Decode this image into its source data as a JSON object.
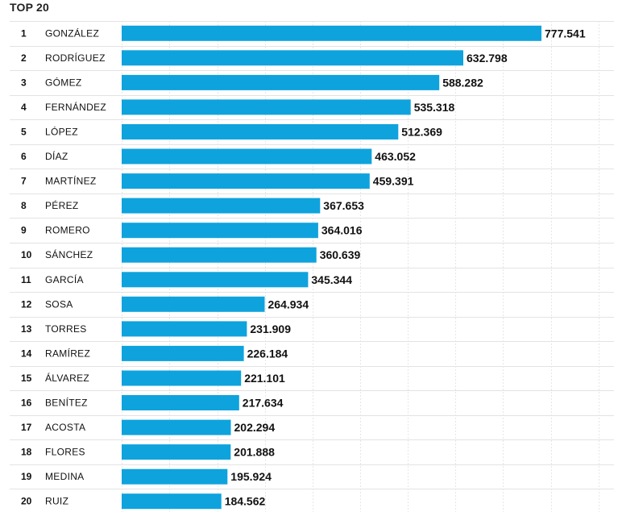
{
  "title": "TOP 20",
  "chart_data": {
    "type": "bar",
    "orientation": "horizontal",
    "title": "TOP 20",
    "bar_color": "#0ea3dd",
    "grid": true,
    "xlim": [
      0,
      820000
    ],
    "rows": [
      {
        "rank": "1",
        "name": "GONZÁLEZ",
        "value": 777541,
        "label": "777.541"
      },
      {
        "rank": "2",
        "name": "RODRÍGUEZ",
        "value": 632798,
        "label": "632.798"
      },
      {
        "rank": "3",
        "name": "GÓMEZ",
        "value": 588282,
        "label": "588.282"
      },
      {
        "rank": "4",
        "name": "FERNÁNDEZ",
        "value": 535318,
        "label": "535.318"
      },
      {
        "rank": "5",
        "name": "LÓPEZ",
        "value": 512369,
        "label": "512.369"
      },
      {
        "rank": "6",
        "name": "DÍAZ",
        "value": 463052,
        "label": "463.052"
      },
      {
        "rank": "7",
        "name": "MARTÍNEZ",
        "value": 459391,
        "label": "459.391"
      },
      {
        "rank": "8",
        "name": "PÉREZ",
        "value": 367653,
        "label": "367.653"
      },
      {
        "rank": "9",
        "name": "ROMERO",
        "value": 364016,
        "label": "364.016"
      },
      {
        "rank": "10",
        "name": "SÁNCHEZ",
        "value": 360639,
        "label": "360.639"
      },
      {
        "rank": "11",
        "name": "GARCÍA",
        "value": 345344,
        "label": "345.344"
      },
      {
        "rank": "12",
        "name": "SOSA",
        "value": 264934,
        "label": "264.934"
      },
      {
        "rank": "13",
        "name": "TORRES",
        "value": 231909,
        "label": "231.909"
      },
      {
        "rank": "14",
        "name": "RAMÍREZ",
        "value": 226184,
        "label": "226.184"
      },
      {
        "rank": "15",
        "name": "ÁLVAREZ",
        "value": 221101,
        "label": "221.101"
      },
      {
        "rank": "16",
        "name": "BENÍTEZ",
        "value": 217634,
        "label": "217.634"
      },
      {
        "rank": "17",
        "name": "ACOSTA",
        "value": 202294,
        "label": "202.294"
      },
      {
        "rank": "18",
        "name": "FLORES",
        "value": 201888,
        "label": "201.888"
      },
      {
        "rank": "19",
        "name": "MEDINA",
        "value": 195924,
        "label": "195.924"
      },
      {
        "rank": "20",
        "name": "RUIZ",
        "value": 184562,
        "label": "184.562"
      }
    ]
  }
}
